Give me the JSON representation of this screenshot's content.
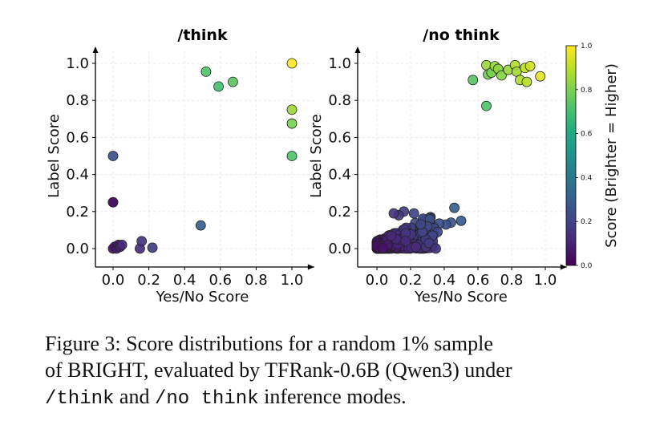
{
  "chart_data": [
    {
      "type": "scatter",
      "title": "/think",
      "xlabel": "Yes/No Score",
      "ylabel": "Label Score",
      "xlim": [
        -0.1,
        1.08
      ],
      "ylim": [
        -0.1,
        1.1
      ],
      "xticks": [
        "0.0",
        "0.2",
        "0.4",
        "0.6",
        "0.8",
        "1.0"
      ],
      "yticks": [
        "0.0",
        "0.2",
        "0.4",
        "0.6",
        "0.8",
        "1.0"
      ],
      "grid": true,
      "points": [
        {
          "x": 0.0,
          "y": 0.5,
          "score": 0.25
        },
        {
          "x": 0.0,
          "y": 0.25,
          "score": 0.1
        },
        {
          "x": 0.0,
          "y": 0.25,
          "score": 0.05
        },
        {
          "x": 0.0,
          "y": 0.0,
          "score": 0.05
        },
        {
          "x": 0.01,
          "y": 0.01,
          "score": 0.06
        },
        {
          "x": 0.02,
          "y": 0.0,
          "score": 0.08
        },
        {
          "x": 0.03,
          "y": 0.02,
          "score": 0.07
        },
        {
          "x": 0.04,
          "y": 0.01,
          "score": 0.1
        },
        {
          "x": 0.05,
          "y": 0.02,
          "score": 0.12
        },
        {
          "x": 0.15,
          "y": 0.0,
          "score": 0.13
        },
        {
          "x": 0.16,
          "y": 0.04,
          "score": 0.15
        },
        {
          "x": 0.22,
          "y": 0.005,
          "score": 0.18
        },
        {
          "x": 0.49,
          "y": 0.125,
          "score": 0.3
        },
        {
          "x": 0.52,
          "y": 0.955,
          "score": 0.72
        },
        {
          "x": 0.59,
          "y": 0.875,
          "score": 0.7
        },
        {
          "x": 0.67,
          "y": 0.9,
          "score": 0.74
        },
        {
          "x": 1.0,
          "y": 1.0,
          "score": 1.0
        },
        {
          "x": 1.0,
          "y": 0.75,
          "score": 0.85
        },
        {
          "x": 1.0,
          "y": 0.675,
          "score": 0.8
        },
        {
          "x": 1.0,
          "y": 0.5,
          "score": 0.72
        }
      ]
    },
    {
      "type": "scatter",
      "title": "/no think",
      "xlabel": "Yes/No Score",
      "ylabel": "Label Score",
      "xlim": [
        -0.1,
        1.08
      ],
      "ylim": [
        -0.1,
        1.1
      ],
      "xticks": [
        "0.0",
        "0.2",
        "0.4",
        "0.6",
        "0.8",
        "1.0"
      ],
      "yticks": [
        "0.0",
        "0.2",
        "0.4",
        "0.6",
        "0.8",
        "1.0"
      ],
      "grid": true,
      "points": [
        {
          "x": 0.65,
          "y": 0.99,
          "score": 0.85
        },
        {
          "x": 0.66,
          "y": 0.94,
          "score": 0.78
        },
        {
          "x": 0.68,
          "y": 0.95,
          "score": 0.8
        },
        {
          "x": 0.7,
          "y": 0.985,
          "score": 0.84
        },
        {
          "x": 0.72,
          "y": 0.97,
          "score": 0.83
        },
        {
          "x": 0.74,
          "y": 0.935,
          "score": 0.82
        },
        {
          "x": 0.78,
          "y": 0.965,
          "score": 0.85
        },
        {
          "x": 0.82,
          "y": 0.99,
          "score": 0.88
        },
        {
          "x": 0.83,
          "y": 0.955,
          "score": 0.86
        },
        {
          "x": 0.85,
          "y": 0.91,
          "score": 0.88
        },
        {
          "x": 0.88,
          "y": 0.975,
          "score": 0.9
        },
        {
          "x": 0.89,
          "y": 0.9,
          "score": 0.89
        },
        {
          "x": 0.91,
          "y": 0.985,
          "score": 0.93
        },
        {
          "x": 0.97,
          "y": 0.93,
          "score": 0.96
        },
        {
          "x": 0.57,
          "y": 0.91,
          "score": 0.74
        },
        {
          "x": 0.65,
          "y": 0.77,
          "score": 0.72
        },
        {
          "x": 0.46,
          "y": 0.22,
          "score": 0.3
        },
        {
          "x": 0.5,
          "y": 0.15,
          "score": 0.28
        },
        {
          "x": 0.44,
          "y": 0.14,
          "score": 0.27
        },
        {
          "x": 0.41,
          "y": 0.13,
          "score": 0.25
        },
        {
          "x": 0.37,
          "y": 0.135,
          "score": 0.25
        },
        {
          "x": 0.34,
          "y": 0.11,
          "score": 0.22
        },
        {
          "x": 0.36,
          "y": 0.09,
          "score": 0.21
        },
        {
          "x": 0.33,
          "y": 0.07,
          "score": 0.2
        },
        {
          "x": 0.3,
          "y": 0.12,
          "score": 0.22
        },
        {
          "x": 0.29,
          "y": 0.05,
          "score": 0.18
        },
        {
          "x": 0.31,
          "y": 0.03,
          "score": 0.17
        },
        {
          "x": 0.27,
          "y": 0.09,
          "score": 0.2
        },
        {
          "x": 0.26,
          "y": 0.13,
          "score": 0.21
        },
        {
          "x": 0.22,
          "y": 0.19,
          "score": 0.2
        },
        {
          "x": 0.16,
          "y": 0.2,
          "score": 0.18
        },
        {
          "x": 0.13,
          "y": 0.18,
          "score": 0.16
        },
        {
          "x": 0.1,
          "y": 0.19,
          "score": 0.15
        },
        {
          "x": 0.35,
          "y": 0.0,
          "score": 0.15
        }
      ],
      "color_scale": {
        "label": "Score (Brighter = Higher)",
        "range": [
          0.0,
          1.0
        ],
        "ticks": [
          "0.0",
          "0.2",
          "0.4",
          "0.6",
          "0.8",
          "1.0"
        ]
      }
    }
  ],
  "caption": {
    "line1_a": "Figure 3: Score distributions for a random 1% sample",
    "line2_a": "of BRIGHT, evaluated by TFRank-0.6B (Qwen3) under",
    "line3_code1": "/think",
    "line3_and": " and ",
    "line3_code2": "/no think",
    "line3_end": " inference modes."
  }
}
